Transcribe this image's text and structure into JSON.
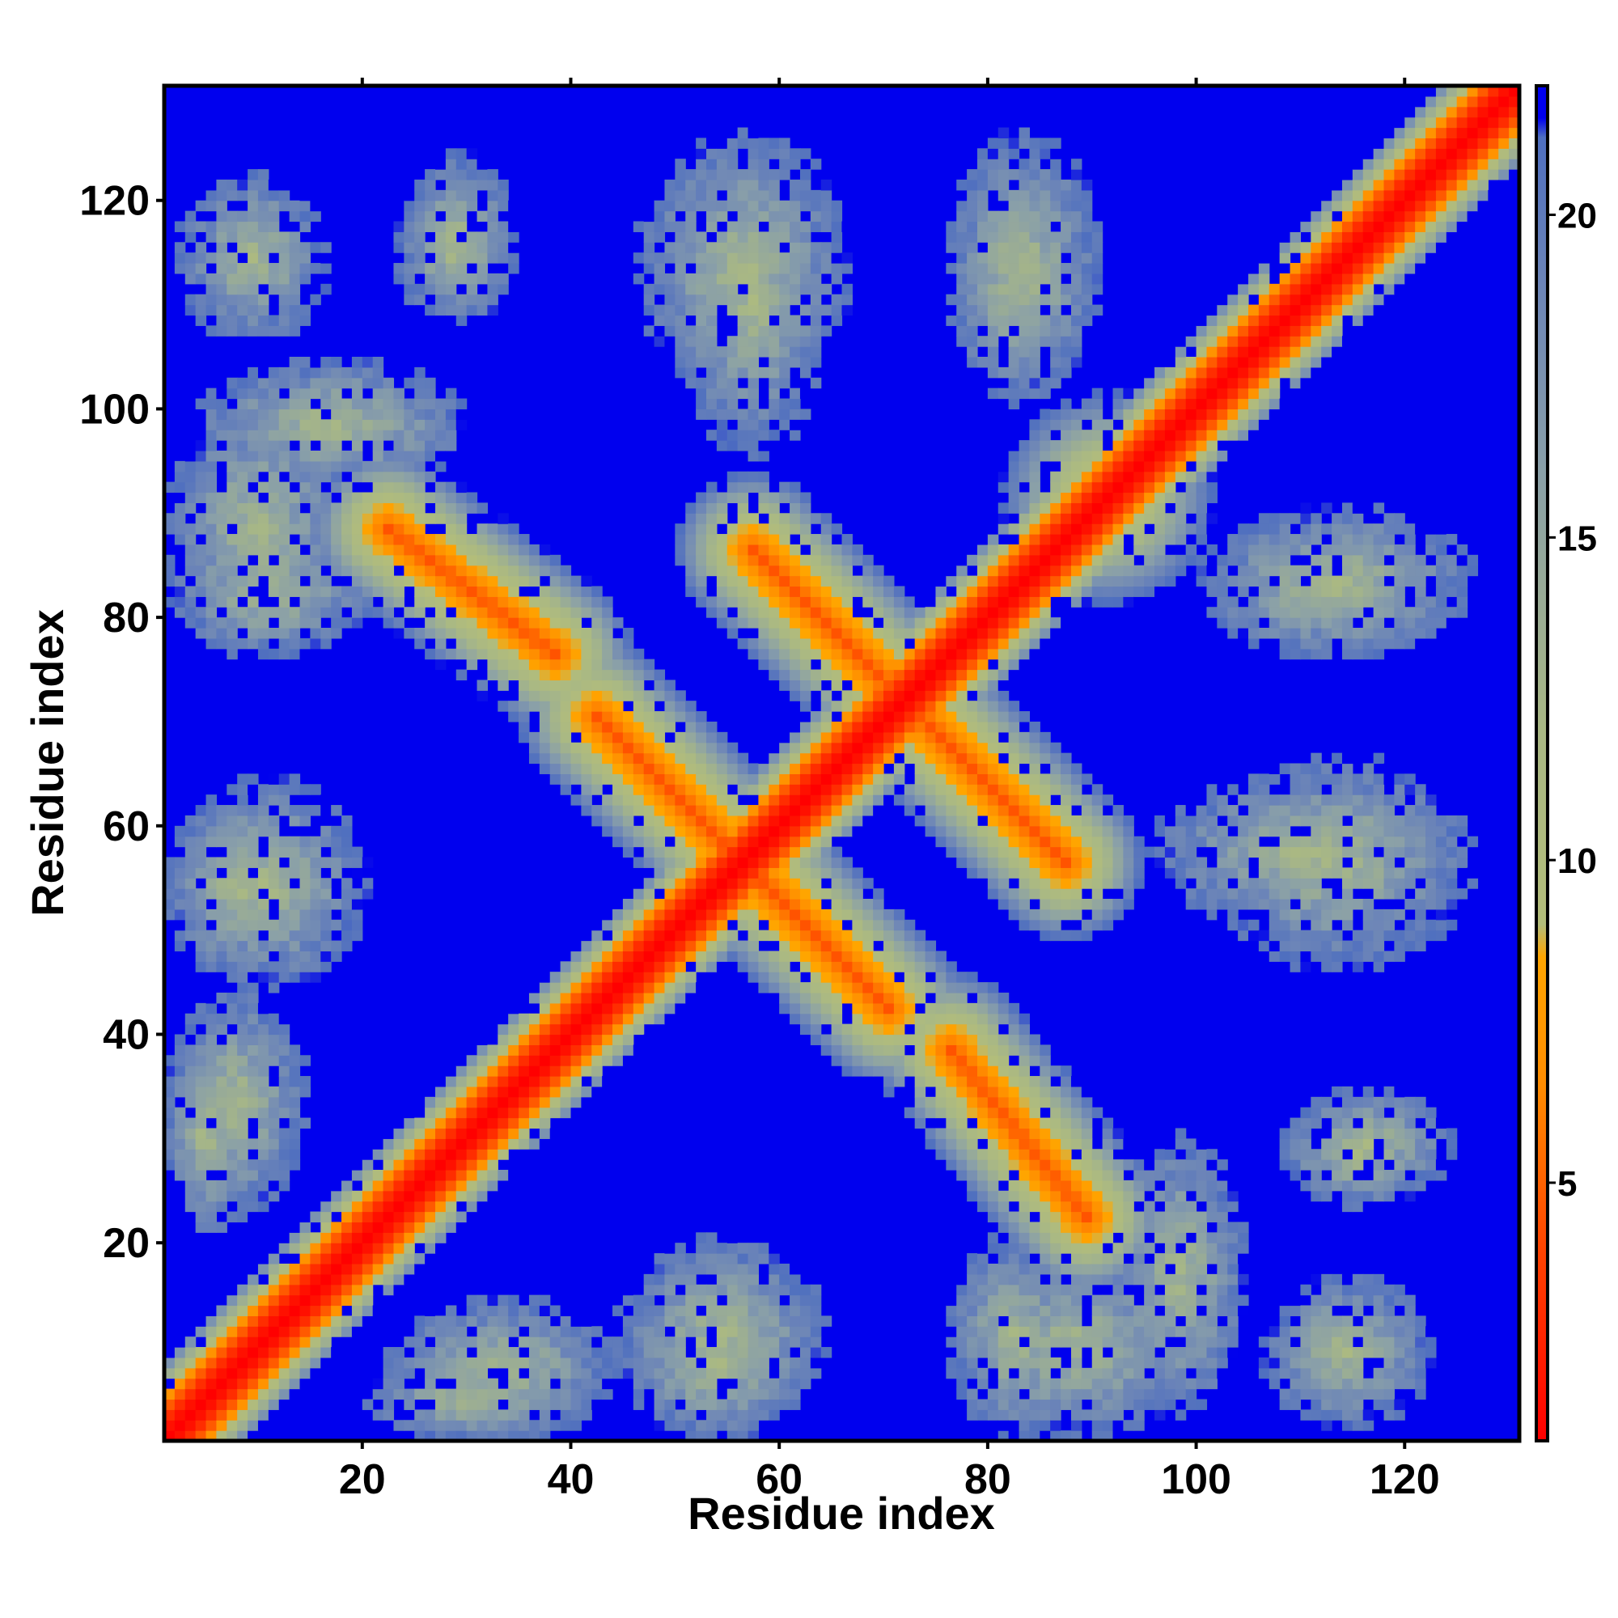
{
  "chart_data": {
    "type": "heatmap",
    "title": "",
    "xlabel": "Residue index",
    "ylabel": "Residue index",
    "xlim": [
      1,
      130
    ],
    "ylim": [
      1,
      130
    ],
    "x_ticks": [
      20,
      40,
      60,
      80,
      100,
      120
    ],
    "y_ticks": [
      20,
      40,
      60,
      80,
      100,
      120
    ],
    "colorbar": {
      "range": [
        1,
        22
      ],
      "ticks": [
        5,
        10,
        15,
        20
      ],
      "stops": [
        {
          "value": 1,
          "color": "#ff0000"
        },
        {
          "value": 4,
          "color": "#ff4500"
        },
        {
          "value": 6.5,
          "color": "#ff8c00"
        },
        {
          "value": 8.5,
          "color": "#ffa500"
        },
        {
          "value": 9,
          "color": "#b3bd7a"
        },
        {
          "value": 12,
          "color": "#a9b884"
        },
        {
          "value": 16,
          "color": "#8aa0a8"
        },
        {
          "value": 19,
          "color": "#6b84b8"
        },
        {
          "value": 21.2,
          "color": "#4f6fbf"
        },
        {
          "value": 21.5,
          "color": "#0000ee"
        }
      ]
    },
    "background_value": 22,
    "contact_bands": [
      {
        "kind": "diagonal",
        "from": [
          1,
          1
        ],
        "to": [
          130,
          130
        ]
      },
      {
        "kind": "anti-diagonal",
        "from": [
          22,
          88
        ],
        "to": [
          38,
          76
        ]
      },
      {
        "kind": "anti-diagonal",
        "from": [
          42,
          70
        ],
        "to": [
          70,
          42
        ]
      },
      {
        "kind": "anti-diagonal",
        "from": [
          57,
          86
        ],
        "to": [
          87,
          56
        ]
      },
      {
        "kind": "anti-diagonal",
        "from": [
          76,
          38
        ],
        "to": [
          89,
          22
        ]
      },
      {
        "kind": "cluster",
        "center": [
          91,
          91
        ]
      }
    ]
  }
}
